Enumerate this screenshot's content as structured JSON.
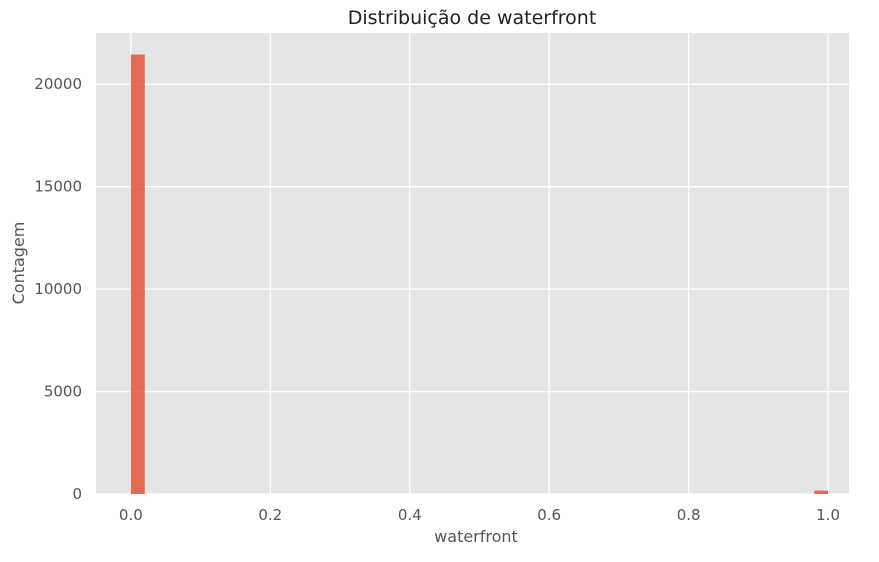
{
  "chart_data": {
    "type": "bar",
    "title": "Distribuição de waterfront",
    "xlabel": "waterfront",
    "ylabel": "Contagem",
    "xlim": [
      -0.05,
      1.03
    ],
    "ylim": [
      0,
      22500
    ],
    "xticks": [
      0.0,
      0.2,
      0.4,
      0.6,
      0.8,
      1.0
    ],
    "xtick_labels": [
      "0.0",
      "0.2",
      "0.4",
      "0.6",
      "0.8",
      "1.0"
    ],
    "yticks": [
      0,
      5000,
      10000,
      15000,
      20000
    ],
    "ytick_labels": [
      "0",
      "5000",
      "10000",
      "15000",
      "20000"
    ],
    "grid": true,
    "bin_width": 0.02,
    "bins": [
      {
        "x_start": 0.0,
        "x_end": 0.02,
        "value": 21450
      },
      {
        "x_start": 0.98,
        "x_end": 1.0,
        "value": 163
      }
    ],
    "bar_color": "#e24a33",
    "background_color": "#e5e5e5",
    "grid_color": "#ffffff"
  }
}
